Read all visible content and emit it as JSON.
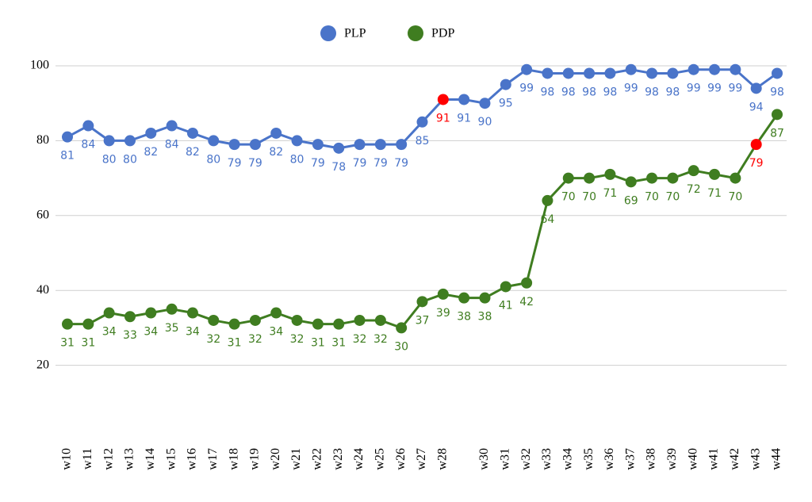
{
  "chart_data": {
    "type": "line",
    "categories": [
      "w10",
      "w11",
      "w12",
      "w13",
      "w14",
      "w15",
      "w16",
      "w17",
      "w18",
      "w19",
      "w20",
      "w21",
      "w22",
      "w23",
      "w24",
      "w25",
      "w26",
      "w27",
      "w28",
      null,
      "w30",
      "w31",
      "w32",
      "w33",
      "w34",
      "w35",
      "w36",
      "w37",
      "w38",
      "w39",
      "w40",
      "w41",
      "w42",
      "w43",
      "w44"
    ],
    "series": [
      {
        "name": "PLP",
        "color": "#4a74c9",
        "values": [
          81,
          84,
          80,
          80,
          82,
          84,
          82,
          80,
          79,
          79,
          82,
          80,
          79,
          78,
          79,
          79,
          79,
          85,
          91,
          91,
          90,
          95,
          99,
          98,
          98,
          98,
          98,
          99,
          98,
          98,
          99,
          99,
          99,
          94,
          98
        ]
      },
      {
        "name": "PDP",
        "color": "#3f7d20",
        "values": [
          31,
          31,
          34,
          33,
          34,
          35,
          34,
          32,
          31,
          32,
          34,
          32,
          31,
          31,
          32,
          32,
          30,
          37,
          39,
          38,
          38,
          41,
          42,
          64,
          70,
          70,
          71,
          69,
          70,
          70,
          72,
          71,
          70,
          79,
          87
        ]
      }
    ],
    "highlight_color": "#ff0000",
    "highlights": [
      {
        "series": 0,
        "index": 18
      },
      {
        "series": 1,
        "index": 33
      }
    ],
    "ylim": [
      0,
      100
    ],
    "yticks": [
      20,
      40,
      60,
      80,
      100
    ],
    "grid": true,
    "legend": "top"
  }
}
